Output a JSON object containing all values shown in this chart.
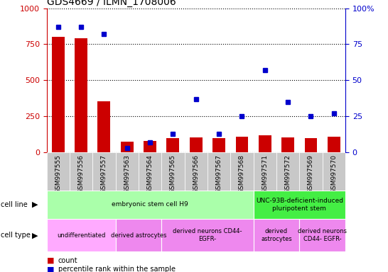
{
  "title": "GDS4669 / ILMN_1708006",
  "samples": [
    "GSM997555",
    "GSM997556",
    "GSM997557",
    "GSM997563",
    "GSM997564",
    "GSM997565",
    "GSM997566",
    "GSM997567",
    "GSM997568",
    "GSM997571",
    "GSM997572",
    "GSM997569",
    "GSM997570"
  ],
  "counts": [
    800,
    790,
    355,
    75,
    80,
    100,
    105,
    100,
    110,
    120,
    105,
    100,
    110
  ],
  "percentile": [
    87,
    87,
    82,
    3,
    7,
    13,
    37,
    13,
    25,
    57,
    35,
    25,
    27
  ],
  "ylim_left": [
    0,
    1000
  ],
  "ylim_right": [
    0,
    100
  ],
  "yticks_left": [
    0,
    250,
    500,
    750,
    1000
  ],
  "yticks_right": [
    0,
    25,
    50,
    75,
    100
  ],
  "cell_line_groups": [
    {
      "label": "embryonic stem cell H9",
      "start": 0,
      "end": 9,
      "color": "#aaffaa"
    },
    {
      "label": "UNC-93B-deficient-induced\npluripotent stem",
      "start": 9,
      "end": 13,
      "color": "#44ee44"
    }
  ],
  "cell_type_groups": [
    {
      "label": "undifferentiated",
      "start": 0,
      "end": 3,
      "color": "#ffaaff"
    },
    {
      "label": "derived astrocytes",
      "start": 3,
      "end": 5,
      "color": "#ee88ee"
    },
    {
      "label": "derived neurons CD44-\nEGFR-",
      "start": 5,
      "end": 9,
      "color": "#ee88ee"
    },
    {
      "label": "derived\nastrocytes",
      "start": 9,
      "end": 11,
      "color": "#ee88ee"
    },
    {
      "label": "derived neurons\nCD44- EGFR-",
      "start": 11,
      "end": 13,
      "color": "#ee88ee"
    }
  ],
  "bar_color": "#cc0000",
  "dot_color": "#0000cc",
  "grid_color": "#000000",
  "left_axis_color": "#cc0000",
  "right_axis_color": "#0000cc",
  "xtick_bg": "#c8c8c8",
  "figsize": [
    5.46,
    3.84
  ],
  "dpi": 100
}
